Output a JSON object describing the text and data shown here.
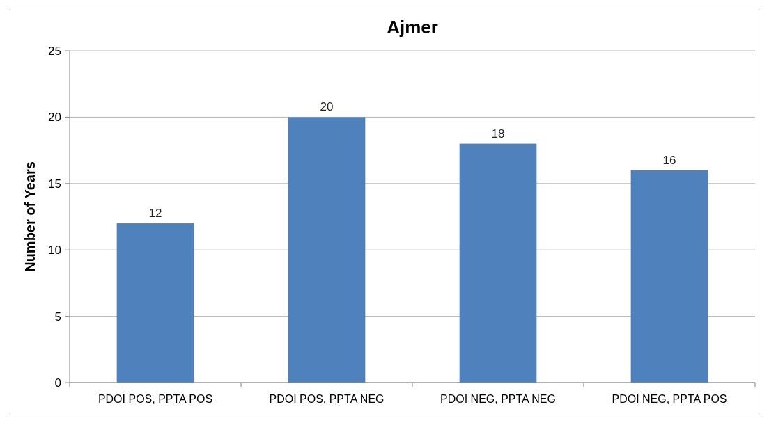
{
  "chart_data": {
    "type": "bar",
    "title": "Ajmer",
    "ylabel": "Number of Years",
    "categories": [
      "PDOI POS, PPTA POS",
      "PDOI POS, PPTA NEG",
      "PDOI NEG, PPTA NEG",
      "PDOI NEG, PPTA POS"
    ],
    "values": [
      12,
      20,
      18,
      16
    ],
    "color": "#4f81bd",
    "ylim": [
      0,
      25
    ],
    "yticks": [
      0,
      5,
      10,
      15,
      20,
      25
    ],
    "grid": "y",
    "data_labels": true
  }
}
